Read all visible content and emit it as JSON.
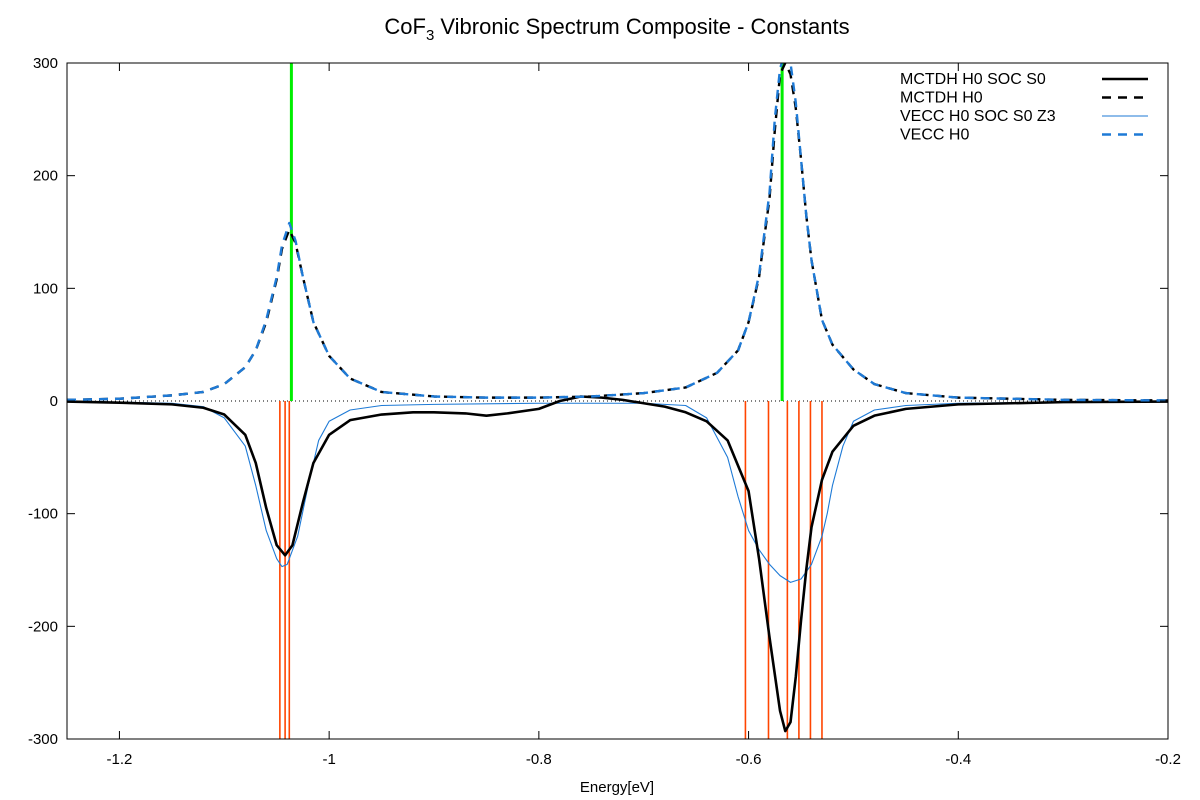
{
  "chart_data": {
    "type": "line",
    "title": "CoF",
    "title_subscript": "3",
    "title_rest": " Vibronic Spectrum Composite - Constants",
    "xlabel": "Energy[eV]",
    "ylabel": "",
    "xlim": [
      -1.25,
      -0.2
    ],
    "ylim": [
      -300,
      300
    ],
    "xticks": [
      -1.2,
      -1,
      -0.8,
      -0.6,
      -0.4,
      -0.2
    ],
    "xtick_labels": [
      "-1.2",
      "-1",
      "-0.8",
      "-0.6",
      "-0.4",
      "-0.2"
    ],
    "yticks": [
      -300,
      -200,
      -100,
      0,
      100,
      200,
      300
    ],
    "ytick_labels": [
      "-300",
      "-200",
      "-100",
      "0",
      "100",
      "200",
      "300"
    ],
    "zero_line": "dotted",
    "legend_position": "top-right",
    "series": [
      {
        "name": "MCTDH H0 SOC S0",
        "style": "solid-thick",
        "color": "#000000",
        "points": [
          [
            -1.25,
            -0.5
          ],
          [
            -1.2,
            -1.5
          ],
          [
            -1.15,
            -3
          ],
          [
            -1.12,
            -6
          ],
          [
            -1.1,
            -12
          ],
          [
            -1.08,
            -30
          ],
          [
            -1.07,
            -55
          ],
          [
            -1.06,
            -95
          ],
          [
            -1.05,
            -128
          ],
          [
            -1.042,
            -137
          ],
          [
            -1.035,
            -128
          ],
          [
            -1.025,
            -90
          ],
          [
            -1.015,
            -55
          ],
          [
            -1.0,
            -30
          ],
          [
            -0.98,
            -17
          ],
          [
            -0.95,
            -12
          ],
          [
            -0.92,
            -10
          ],
          [
            -0.9,
            -10
          ],
          [
            -0.87,
            -11
          ],
          [
            -0.85,
            -13
          ],
          [
            -0.83,
            -11
          ],
          [
            -0.8,
            -7
          ],
          [
            -0.78,
            0
          ],
          [
            -0.76,
            4
          ],
          [
            -0.74,
            3
          ],
          [
            -0.72,
            1
          ],
          [
            -0.7,
            -2
          ],
          [
            -0.68,
            -5
          ],
          [
            -0.66,
            -10
          ],
          [
            -0.64,
            -18
          ],
          [
            -0.62,
            -35
          ],
          [
            -0.6,
            -80
          ],
          [
            -0.59,
            -140
          ],
          [
            -0.58,
            -210
          ],
          [
            -0.57,
            -275
          ],
          [
            -0.565,
            -293
          ],
          [
            -0.56,
            -285
          ],
          [
            -0.555,
            -245
          ],
          [
            -0.55,
            -195
          ],
          [
            -0.545,
            -150
          ],
          [
            -0.54,
            -112
          ],
          [
            -0.53,
            -70
          ],
          [
            -0.52,
            -45
          ],
          [
            -0.5,
            -22
          ],
          [
            -0.48,
            -13
          ],
          [
            -0.45,
            -7
          ],
          [
            -0.4,
            -3
          ],
          [
            -0.3,
            -1
          ],
          [
            -0.2,
            -0.5
          ]
        ]
      },
      {
        "name": "MCTDH H0",
        "style": "dashed-thick",
        "color": "#000000",
        "points": [
          [
            -1.25,
            1
          ],
          [
            -1.2,
            2
          ],
          [
            -1.15,
            5
          ],
          [
            -1.12,
            8
          ],
          [
            -1.1,
            15
          ],
          [
            -1.08,
            30
          ],
          [
            -1.07,
            45
          ],
          [
            -1.06,
            70
          ],
          [
            -1.05,
            108
          ],
          [
            -1.045,
            135
          ],
          [
            -1.038,
            152
          ],
          [
            -1.032,
            140
          ],
          [
            -1.025,
            110
          ],
          [
            -1.015,
            70
          ],
          [
            -1.0,
            40
          ],
          [
            -0.98,
            20
          ],
          [
            -0.95,
            8
          ],
          [
            -0.9,
            4
          ],
          [
            -0.85,
            3
          ],
          [
            -0.8,
            3
          ],
          [
            -0.75,
            4
          ],
          [
            -0.7,
            7
          ],
          [
            -0.66,
            12
          ],
          [
            -0.63,
            25
          ],
          [
            -0.61,
            45
          ],
          [
            -0.6,
            70
          ],
          [
            -0.59,
            110
          ],
          [
            -0.58,
            180
          ],
          [
            -0.575,
            240
          ],
          [
            -0.57,
            290
          ],
          [
            -0.565,
            300
          ],
          [
            -0.56,
            290
          ],
          [
            -0.555,
            260
          ],
          [
            -0.55,
            215
          ],
          [
            -0.545,
            165
          ],
          [
            -0.54,
            125
          ],
          [
            -0.53,
            72
          ],
          [
            -0.52,
            50
          ],
          [
            -0.5,
            28
          ],
          [
            -0.48,
            15
          ],
          [
            -0.45,
            7
          ],
          [
            -0.4,
            3
          ],
          [
            -0.3,
            1
          ],
          [
            -0.2,
            0.5
          ]
        ]
      },
      {
        "name": "VECC    H0 SOC S0 Z3",
        "style": "solid-thin",
        "color": "#1e7ad6",
        "points": [
          [
            -1.25,
            -0.5
          ],
          [
            -1.2,
            -1
          ],
          [
            -1.15,
            -2
          ],
          [
            -1.12,
            -5
          ],
          [
            -1.1,
            -15
          ],
          [
            -1.08,
            -40
          ],
          [
            -1.07,
            -75
          ],
          [
            -1.06,
            -115
          ],
          [
            -1.05,
            -140
          ],
          [
            -1.045,
            -147
          ],
          [
            -1.04,
            -145
          ],
          [
            -1.03,
            -120
          ],
          [
            -1.02,
            -75
          ],
          [
            -1.01,
            -35
          ],
          [
            -1.0,
            -18
          ],
          [
            -0.98,
            -8
          ],
          [
            -0.95,
            -4
          ],
          [
            -0.9,
            -3
          ],
          [
            -0.8,
            -2
          ],
          [
            -0.7,
            -2
          ],
          [
            -0.66,
            -4
          ],
          [
            -0.64,
            -15
          ],
          [
            -0.62,
            -50
          ],
          [
            -0.61,
            -85
          ],
          [
            -0.6,
            -115
          ],
          [
            -0.59,
            -132
          ],
          [
            -0.58,
            -145
          ],
          [
            -0.57,
            -155
          ],
          [
            -0.56,
            -161
          ],
          [
            -0.55,
            -158
          ],
          [
            -0.54,
            -145
          ],
          [
            -0.53,
            -120
          ],
          [
            -0.525,
            -100
          ],
          [
            -0.52,
            -75
          ],
          [
            -0.51,
            -40
          ],
          [
            -0.5,
            -18
          ],
          [
            -0.48,
            -8
          ],
          [
            -0.45,
            -4
          ],
          [
            -0.4,
            -2
          ],
          [
            -0.3,
            -1
          ],
          [
            -0.2,
            -0.5
          ]
        ]
      },
      {
        "name": "VECC    H0",
        "style": "dashed-thick",
        "color": "#1e7ad6",
        "points": [
          [
            -1.25,
            1
          ],
          [
            -1.2,
            2
          ],
          [
            -1.15,
            5
          ],
          [
            -1.12,
            8
          ],
          [
            -1.1,
            15
          ],
          [
            -1.08,
            30
          ],
          [
            -1.07,
            45
          ],
          [
            -1.06,
            72
          ],
          [
            -1.05,
            110
          ],
          [
            -1.045,
            138
          ],
          [
            -1.038,
            158
          ],
          [
            -1.032,
            142
          ],
          [
            -1.025,
            110
          ],
          [
            -1.015,
            70
          ],
          [
            -1.0,
            40
          ],
          [
            -0.98,
            20
          ],
          [
            -0.95,
            8
          ],
          [
            -0.9,
            4
          ],
          [
            -0.85,
            3
          ],
          [
            -0.8,
            3
          ],
          [
            -0.75,
            4
          ],
          [
            -0.7,
            7
          ],
          [
            -0.66,
            12
          ],
          [
            -0.63,
            25
          ],
          [
            -0.61,
            45
          ],
          [
            -0.6,
            70
          ],
          [
            -0.59,
            112
          ],
          [
            -0.58,
            185
          ],
          [
            -0.575,
            250
          ],
          [
            -0.57,
            295
          ],
          [
            -0.565,
            310
          ],
          [
            -0.56,
            300
          ],
          [
            -0.555,
            265
          ],
          [
            -0.55,
            215
          ],
          [
            -0.545,
            165
          ],
          [
            -0.54,
            125
          ],
          [
            -0.53,
            72
          ],
          [
            -0.52,
            50
          ],
          [
            -0.5,
            28
          ],
          [
            -0.48,
            15
          ],
          [
            -0.45,
            7
          ],
          [
            -0.4,
            3
          ],
          [
            -0.3,
            1
          ],
          [
            -0.2,
            0.5
          ]
        ]
      }
    ],
    "green_sticks": {
      "color": "#00ee00",
      "x": [
        -1.036,
        -0.568
      ],
      "y_top": 300
    },
    "orange_sticks": {
      "color": "#ff4500",
      "x": [
        -1.047,
        -1.042,
        -1.038,
        -0.603,
        -0.581,
        -0.563,
        -0.552,
        -0.541,
        -0.53
      ],
      "y_bottom": -300
    }
  }
}
